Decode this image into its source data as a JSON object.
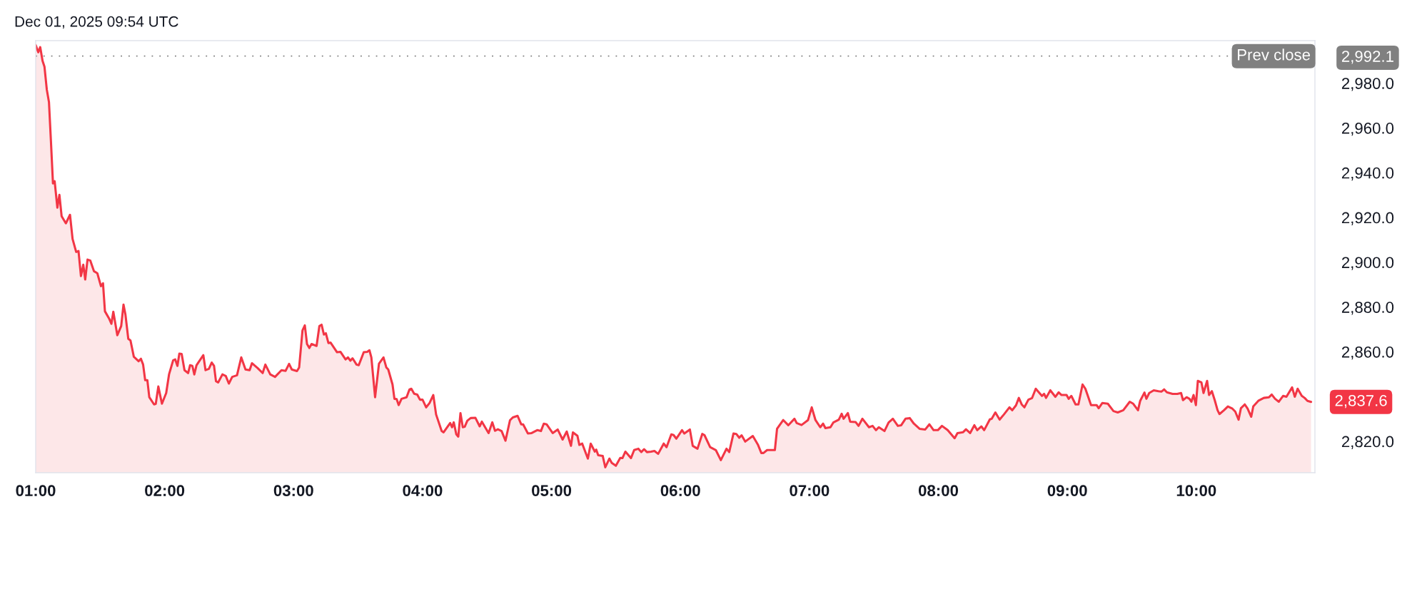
{
  "chart_data": {
    "type": "area",
    "color": "#f23645",
    "x": [
      1.0,
      1.02,
      1.035,
      1.053,
      1.068,
      1.086,
      1.103,
      1.118,
      1.134,
      1.147,
      1.168,
      1.184,
      1.201,
      1.234,
      1.266,
      1.286,
      1.314,
      1.332,
      1.351,
      1.369,
      1.384,
      1.402,
      1.423,
      1.452,
      1.478,
      1.506,
      1.522,
      1.537,
      1.569,
      1.587,
      1.602,
      1.633,
      1.663,
      1.681,
      1.696,
      1.718,
      1.735,
      1.761,
      1.798,
      1.816,
      1.833,
      1.849,
      1.866,
      1.881,
      1.918,
      1.931,
      1.951,
      1.979,
      2.012,
      2.034,
      2.066,
      2.082,
      2.099,
      2.114,
      2.132,
      2.154,
      2.182,
      2.197,
      2.215,
      2.23,
      2.247,
      2.3,
      2.317,
      2.343,
      2.365,
      2.383,
      2.398,
      2.415,
      2.448,
      2.474,
      2.498,
      2.524,
      2.561,
      2.594,
      2.627,
      2.659,
      2.677,
      2.72,
      2.76,
      2.781,
      2.819,
      2.856,
      2.906,
      2.938,
      2.965,
      2.986,
      3.026,
      3.043,
      3.069,
      3.087,
      3.104,
      3.122,
      3.139,
      3.178,
      3.2,
      3.217,
      3.235,
      3.25,
      3.27,
      3.287,
      3.337,
      3.363,
      3.403,
      3.422,
      3.44,
      3.457,
      3.488,
      3.505,
      3.544,
      3.571,
      3.588,
      3.603,
      3.632,
      3.662,
      3.697,
      3.719,
      3.734,
      3.767,
      3.782,
      3.799,
      3.815,
      3.837,
      3.876,
      3.898,
      3.913,
      3.935,
      3.959,
      3.98,
      4.0,
      4.028,
      4.054,
      4.083,
      4.105,
      4.148,
      4.163,
      4.214,
      4.229,
      4.242,
      4.262,
      4.277,
      4.294,
      4.312,
      4.327,
      4.347,
      4.373,
      4.41,
      4.443,
      4.46,
      4.512,
      4.541,
      4.562,
      4.584,
      4.613,
      4.643,
      4.678,
      4.7,
      4.737,
      4.765,
      4.78,
      4.817,
      4.846,
      4.889,
      4.918,
      4.94,
      4.962,
      5.009,
      5.048,
      5.086,
      5.118,
      5.151,
      5.166,
      5.201,
      5.216,
      5.238,
      5.282,
      5.304,
      5.336,
      5.347,
      5.362,
      5.397,
      5.417,
      5.449,
      5.467,
      5.499,
      5.533,
      5.55,
      5.573,
      5.616,
      5.641,
      5.674,
      5.696,
      5.718,
      5.74,
      5.772,
      5.798,
      5.827,
      5.87,
      5.892,
      5.929,
      5.947,
      5.968,
      5.99,
      6.012,
      6.03,
      6.073,
      6.095,
      6.132,
      6.169,
      6.186,
      6.23,
      6.274,
      6.313,
      6.357,
      6.378,
      6.411,
      6.433,
      6.456,
      6.474,
      6.502,
      6.561,
      6.6,
      6.627,
      6.644,
      6.672,
      6.688,
      6.732,
      6.749,
      6.797,
      6.836,
      6.884,
      6.901,
      6.939,
      6.989,
      7.018,
      7.047,
      7.084,
      7.106,
      7.124,
      7.163,
      7.185,
      7.228,
      7.25,
      7.265,
      7.298,
      7.316,
      7.359,
      7.381,
      7.411,
      7.462,
      7.49,
      7.516,
      7.538,
      7.582,
      7.614,
      7.647,
      7.686,
      7.712,
      7.745,
      7.778,
      7.81,
      7.854,
      7.898,
      7.93,
      7.963,
      7.996,
      8.028,
      8.072,
      8.126,
      8.148,
      8.192,
      8.214,
      8.246,
      8.279,
      8.301,
      8.333,
      8.355,
      8.399,
      8.414,
      8.442,
      8.475,
      8.508,
      8.551,
      8.573,
      8.602,
      8.624,
      8.646,
      8.667,
      8.698,
      8.726,
      8.755,
      8.803,
      8.82,
      8.835,
      8.868,
      8.907,
      8.933,
      8.955,
      8.994,
      9.01,
      9.031,
      9.064,
      9.086,
      9.118,
      9.14,
      9.184,
      9.227,
      9.243,
      9.271,
      9.314,
      9.358,
      9.391,
      9.434,
      9.484,
      9.511,
      9.548,
      9.565,
      9.598,
      9.613,
      9.635,
      9.67,
      9.707,
      9.729,
      9.751,
      9.772,
      9.816,
      9.853,
      9.882,
      9.897,
      9.925,
      9.947,
      9.962,
      9.979,
      9.997,
      10.012,
      10.04,
      10.056,
      10.084,
      10.099,
      10.121,
      10.143,
      10.165,
      10.18,
      10.215,
      10.245,
      10.28,
      10.302,
      10.328,
      10.346,
      10.376,
      10.398,
      10.426,
      10.442,
      10.481,
      10.524,
      10.564,
      10.585,
      10.611,
      10.64,
      10.673,
      10.699,
      10.743,
      10.764,
      10.786,
      10.818,
      10.84,
      10.862,
      10.89
    ],
    "values": [
      2997.0,
      2993.8,
      2996.1,
      2990.0,
      2987.4,
      2977.2,
      2971.5,
      2954.3,
      2935.2,
      2936.2,
      2924.4,
      2930.1,
      2920.6,
      2917.4,
      2921.2,
      2910.4,
      2904.6,
      2905.0,
      2893.8,
      2898.9,
      2892.3,
      2901.2,
      2900.8,
      2896.0,
      2895.1,
      2889.3,
      2890.6,
      2878.1,
      2874.9,
      2872.5,
      2877.9,
      2867.4,
      2871.5,
      2881.1,
      2876.6,
      2865.8,
      2865.1,
      2857.8,
      2855.8,
      2856.9,
      2854.3,
      2847.3,
      2847.3,
      2839.7,
      2836.5,
      2836.7,
      2844.5,
      2836.8,
      2841.6,
      2849.9,
      2856.2,
      2856.6,
      2853.7,
      2859.2,
      2859.0,
      2851.8,
      2850.5,
      2854.0,
      2853.7,
      2849.9,
      2854.0,
      2858.5,
      2851.8,
      2852.4,
      2855.2,
      2853.7,
      2846.9,
      2846.3,
      2849.9,
      2849.2,
      2845.8,
      2848.8,
      2849.5,
      2857.5,
      2852.1,
      2851.8,
      2854.9,
      2852.8,
      2850.5,
      2854.3,
      2849.9,
      2848.8,
      2851.8,
      2851.5,
      2854.6,
      2852.1,
      2851.4,
      2853.0,
      2869.6,
      2871.8,
      2863.5,
      2861.7,
      2863.5,
      2862.6,
      2871.5,
      2872.1,
      2867.7,
      2868.3,
      2863.9,
      2864.1,
      2859.8,
      2860.0,
      2856.6,
      2857.5,
      2856.0,
      2857.1,
      2854.3,
      2854.0,
      2859.8,
      2860.0,
      2860.7,
      2857.5,
      2839.7,
      2854.7,
      2857.5,
      2853.0,
      2852.1,
      2845.4,
      2839.0,
      2838.9,
      2836.2,
      2839.0,
      2839.7,
      2843.1,
      2843.5,
      2841.3,
      2840.9,
      2838.6,
      2838.6,
      2835.2,
      2837.1,
      2840.7,
      2832.0,
      2824.6,
      2824.0,
      2828.2,
      2826.3,
      2828.5,
      2823.1,
      2822.1,
      2832.6,
      2826.3,
      2826.5,
      2829.2,
      2830.4,
      2830.5,
      2826.7,
      2828.8,
      2823.7,
      2828.5,
      2824.7,
      2825.4,
      2824.6,
      2820.3,
      2829.4,
      2830.7,
      2831.4,
      2827.6,
      2827.6,
      2823.5,
      2823.7,
      2825.0,
      2824.6,
      2827.9,
      2827.6,
      2823.7,
      2825.3,
      2820.8,
      2824.4,
      2818.0,
      2824.0,
      2822.5,
      2818.4,
      2819.0,
      2812.3,
      2819.0,
      2815.4,
      2816.3,
      2813.8,
      2813.5,
      2808.4,
      2812.3,
      2810.4,
      2809.1,
      2812.6,
      2812.5,
      2815.4,
      2812.5,
      2816.1,
      2816.7,
      2815.2,
      2816.5,
      2815.2,
      2815.4,
      2815.7,
      2814.4,
      2819.0,
      2817.4,
      2823.1,
      2822.8,
      2821.2,
      2823.1,
      2825.0,
      2823.5,
      2825.3,
      2818.0,
      2816.7,
      2823.3,
      2822.8,
      2817.4,
      2816.1,
      2811.6,
      2816.7,
      2815.2,
      2823.5,
      2823.3,
      2821.6,
      2822.7,
      2819.9,
      2822.4,
      2818.6,
      2814.8,
      2814.8,
      2816.1,
      2816.1,
      2816.1,
      2825.6,
      2829.5,
      2827.2,
      2830.1,
      2828.2,
      2827.3,
      2829.5,
      2835.2,
      2829.5,
      2826.3,
      2827.9,
      2825.9,
      2826.3,
      2828.4,
      2829.7,
      2832.3,
      2830.1,
      2832.6,
      2828.8,
      2828.6,
      2826.9,
      2830.1,
      2826.3,
      2826.9,
      2825.0,
      2826.3,
      2824.6,
      2828.4,
      2830.1,
      2826.9,
      2827.2,
      2830.1,
      2830.4,
      2827.9,
      2825.6,
      2825.3,
      2827.6,
      2825.0,
      2825.0,
      2826.9,
      2825.0,
      2821.4,
      2823.7,
      2824.1,
      2825.4,
      2823.7,
      2827.2,
      2825.0,
      2826.7,
      2825.0,
      2829.8,
      2830.1,
      2832.9,
      2829.7,
      2832.0,
      2835.2,
      2833.9,
      2836.1,
      2839.4,
      2836.5,
      2835.2,
      2838.6,
      2839.3,
      2843.5,
      2840.3,
      2841.2,
      2839.4,
      2842.8,
      2839.9,
      2841.9,
      2840.7,
      2840.7,
      2839.0,
      2840.3,
      2836.5,
      2836.5,
      2845.4,
      2843.5,
      2836.2,
      2836.2,
      2834.8,
      2837.1,
      2836.8,
      2833.5,
      2832.9,
      2833.9,
      2837.7,
      2836.8,
      2833.9,
      2838.1,
      2841.8,
      2839.0,
      2841.6,
      2842.8,
      2842.4,
      2842.2,
      2843.2,
      2841.9,
      2841.2,
      2841.2,
      2841.6,
      2838.4,
      2839.7,
      2839.0,
      2837.7,
      2840.7,
      2836.2,
      2847.0,
      2846.3,
      2841.6,
      2847.0,
      2840.7,
      2842.4,
      2838.4,
      2833.9,
      2832.2,
      2833.9,
      2835.6,
      2834.6,
      2833.3,
      2829.7,
      2834.8,
      2836.5,
      2834.6,
      2831.0,
      2835.6,
      2838.1,
      2839.4,
      2839.7,
      2840.9,
      2839.0,
      2837.7,
      2840.3,
      2839.9,
      2844.1,
      2839.9,
      2843.5,
      2840.3,
      2839.4,
      2838.1,
      2837.6
    ],
    "xlim": [
      1.0,
      10.92
    ],
    "xticks": [
      {
        "value": 1,
        "label": "01:00"
      },
      {
        "value": 2,
        "label": "02:00"
      },
      {
        "value": 3,
        "label": "03:00"
      },
      {
        "value": 4,
        "label": "04:00"
      },
      {
        "value": 5,
        "label": "05:00"
      },
      {
        "value": 6,
        "label": "06:00"
      },
      {
        "value": 7,
        "label": "07:00"
      },
      {
        "value": 8,
        "label": "08:00"
      },
      {
        "value": 9,
        "label": "09:00"
      },
      {
        "value": 10,
        "label": "10:00"
      }
    ],
    "ylim": [
      2806,
      2999
    ],
    "yticks": [
      {
        "value": 2820,
        "label": "2,820.0"
      },
      {
        "value": 2860,
        "label": "2,860.0"
      },
      {
        "value": 2880,
        "label": "2,880.0"
      },
      {
        "value": 2900,
        "label": "2,900.0"
      },
      {
        "value": 2920,
        "label": "2,920.0"
      },
      {
        "value": 2940,
        "label": "2,940.0"
      },
      {
        "value": 2960,
        "label": "2,960.0"
      },
      {
        "value": 2980,
        "label": "2,980.0"
      },
      {
        "value": 2992.1,
        "label": "2,992.1"
      }
    ],
    "grid": false,
    "ref_lines": [
      {
        "axis": "y",
        "value": 2992.1,
        "label": "Prev close",
        "color": "#808080",
        "line_style": "dotted"
      }
    ],
    "annotations": [
      "Dec 01, 2025 09:54 UTC",
      {
        "text": "2,837.6",
        "x": 10.89,
        "y": 2837.6
      }
    ]
  }
}
